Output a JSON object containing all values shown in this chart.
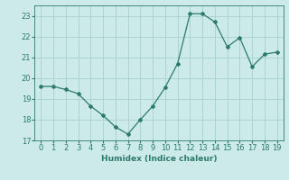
{
  "x": [
    0,
    1,
    2,
    3,
    4,
    5,
    6,
    7,
    8,
    9,
    10,
    11,
    12,
    13,
    14,
    15,
    16,
    17,
    18,
    19
  ],
  "y": [
    19.6,
    19.6,
    19.45,
    19.25,
    18.65,
    18.2,
    17.65,
    17.3,
    18.0,
    18.65,
    19.55,
    20.7,
    23.1,
    23.1,
    22.7,
    21.5,
    21.95,
    20.55,
    21.15,
    21.25
  ],
  "line_color": "#2d7a6e",
  "marker": "D",
  "marker_size": 2,
  "bg_color": "#cceae7",
  "grid_color": "#aed4d0",
  "xlabel": "Humidex (Indice chaleur)",
  "xlim": [
    -0.5,
    19.5
  ],
  "ylim": [
    17,
    23.5
  ],
  "yticks": [
    17,
    18,
    19,
    20,
    21,
    22,
    23
  ],
  "xticks": [
    0,
    1,
    2,
    3,
    4,
    5,
    6,
    7,
    8,
    9,
    10,
    11,
    12,
    13,
    14,
    15,
    16,
    17,
    18,
    19
  ],
  "label_fontsize": 6.5,
  "tick_fontsize": 6
}
